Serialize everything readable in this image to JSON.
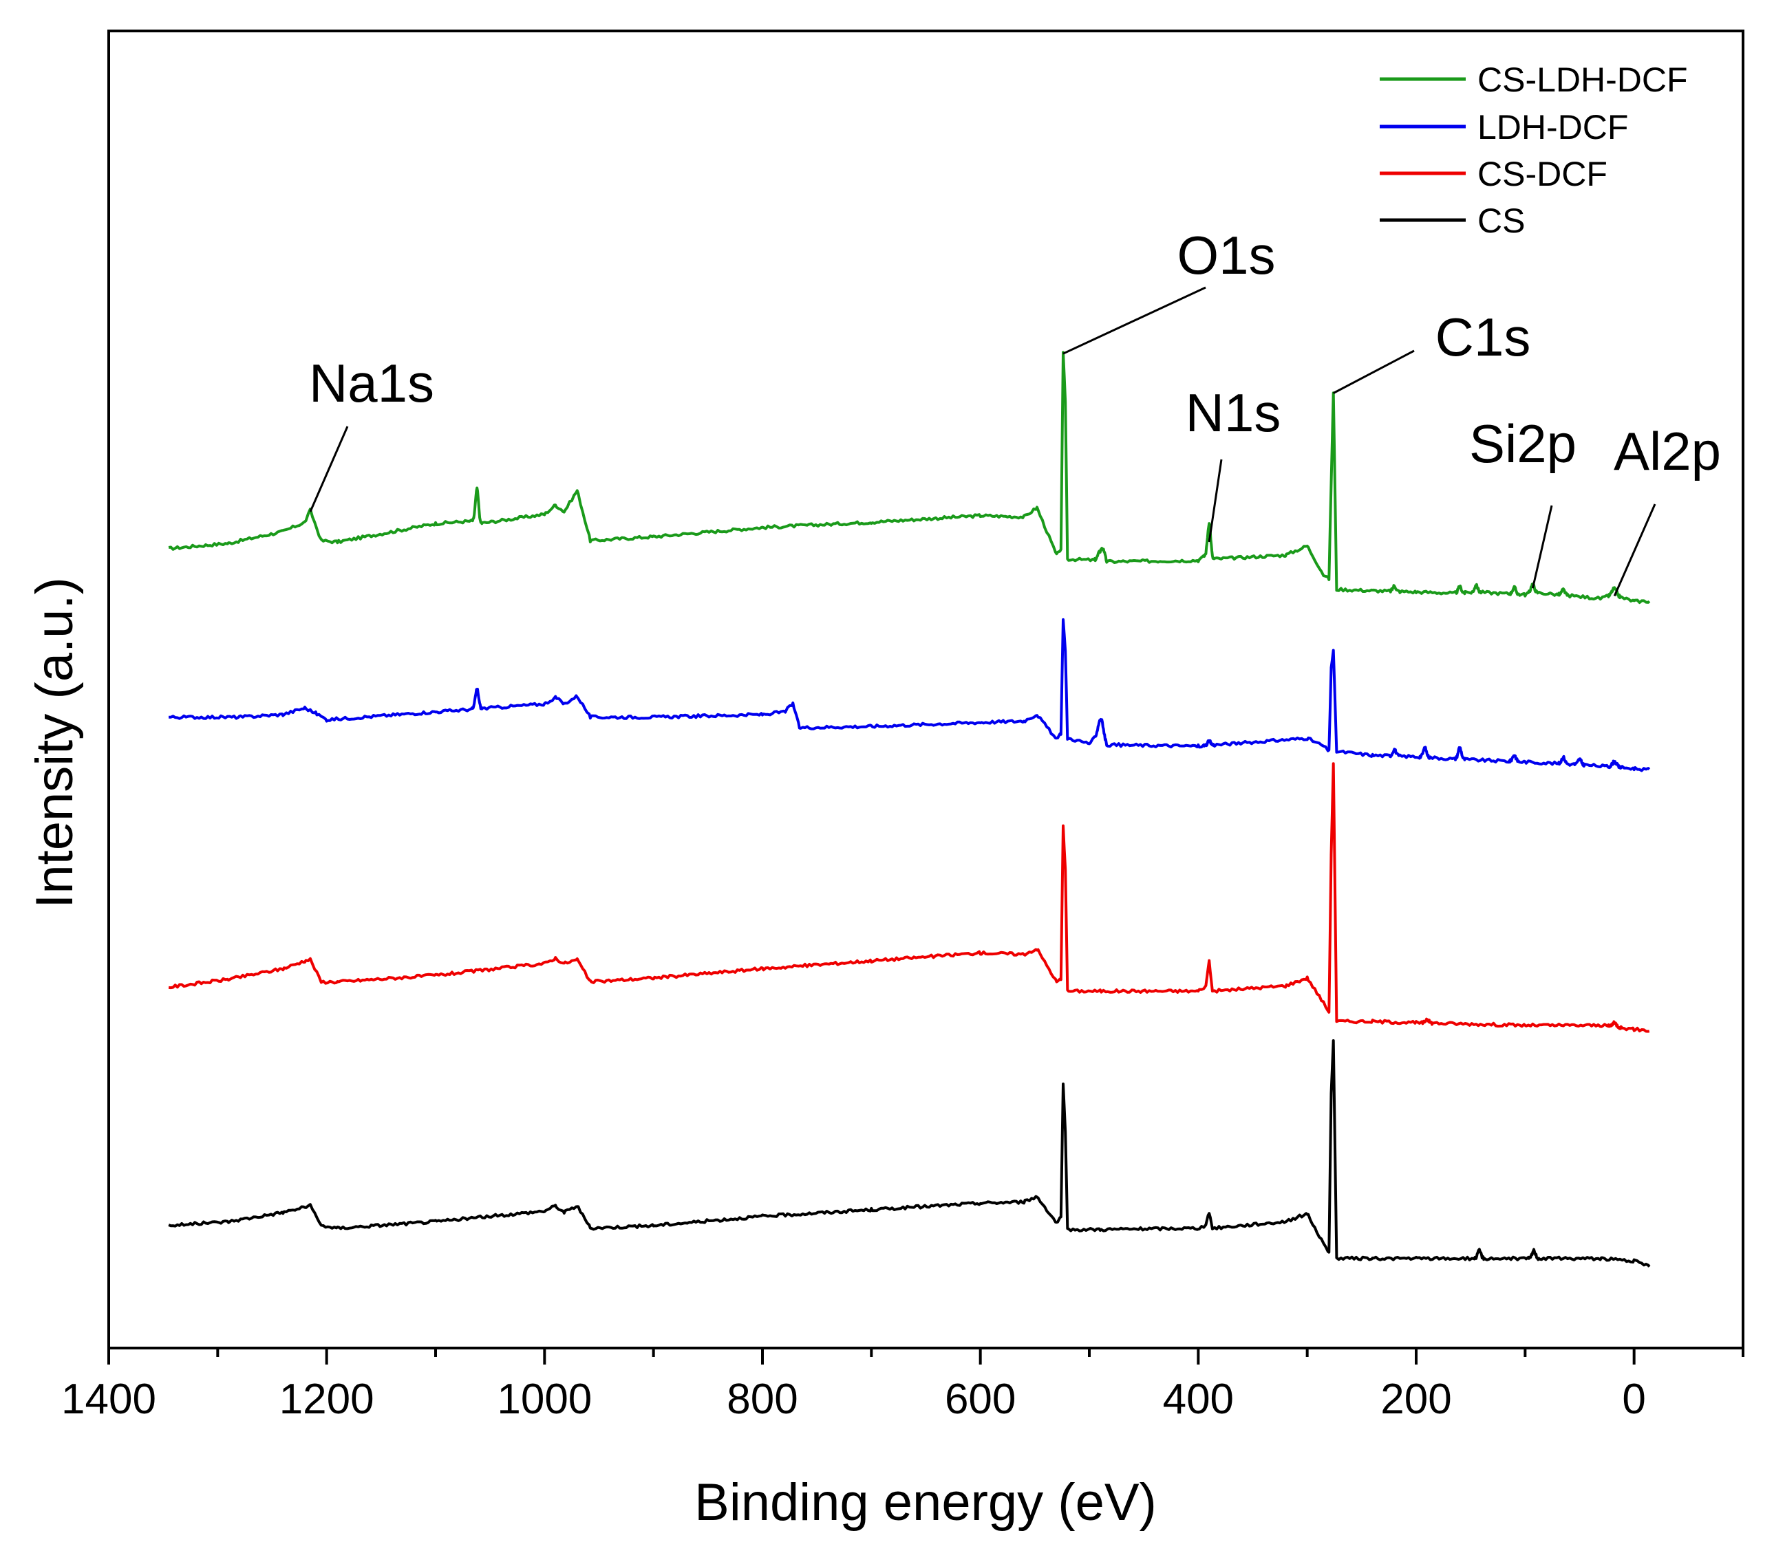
{
  "chart_data": {
    "type": "line",
    "title": "",
    "xlabel": "Binding energy (eV)",
    "ylabel": "Intensity (a.u.)",
    "xlim": [
      1400,
      -100
    ],
    "x_reversed": true,
    "ylim": [
      0,
      100
    ],
    "x_ticks": [
      1400,
      1200,
      1000,
      800,
      600,
      400,
      200,
      0
    ],
    "x_tick_labels": [
      "1400",
      "1200",
      "1000",
      "800",
      "600",
      "400",
      "200",
      "0"
    ],
    "x_minor_ticks": [
      1300,
      1100,
      900,
      700,
      500,
      300,
      100,
      -100
    ],
    "grid": false,
    "legend_position": "top-right",
    "series": [
      {
        "name": "CS-LDH-DCF",
        "color": "#1a9a1a",
        "offset": 60.7,
        "keypoints": [
          [
            1345,
            0
          ],
          [
            1290,
            0.4
          ],
          [
            1240,
            1.3
          ],
          [
            1220,
            2.0
          ],
          [
            1215,
            2.9
          ],
          [
            1205,
            0.6
          ],
          [
            1190,
            0.5
          ],
          [
            1100,
            1.9
          ],
          [
            1065,
            2.1
          ],
          [
            1062,
            3.4
          ],
          [
            1059,
            1.9
          ],
          [
            1000,
            2.6
          ],
          [
            990,
            3.3
          ],
          [
            982,
            2.8
          ],
          [
            970,
            4.4
          ],
          [
            958,
            0.6
          ],
          [
            900,
            0.9
          ],
          [
            800,
            1.6
          ],
          [
            700,
            2.0
          ],
          [
            600,
            2.5
          ],
          [
            560,
            2.4
          ],
          [
            548,
            3.1
          ],
          [
            530,
            -0.5
          ],
          [
            526,
            0
          ],
          [
            524,
            14.8
          ],
          [
            522,
            11.2
          ],
          [
            520,
            -0.8
          ],
          [
            490,
            -0.9
          ],
          [
            487,
            -0.2
          ],
          [
            484,
            -1.0
          ],
          [
            400,
            -0.9
          ],
          [
            393,
            -0.5
          ],
          [
            390,
            0.6
          ],
          [
            387,
            -0.8
          ],
          [
            320,
            -0.5
          ],
          [
            300,
            0.2
          ],
          [
            285,
            -2.0
          ],
          [
            280,
            -2.3
          ],
          [
            278,
            5.0
          ],
          [
            276,
            11.8
          ],
          [
            273,
            -3.1
          ],
          [
            240,
            -3.2
          ],
          [
            200,
            -3.3
          ],
          [
            160,
            -3.4
          ],
          [
            145,
            -3.3
          ],
          [
            100,
            -3.5
          ],
          [
            95,
            -3.3
          ],
          [
            30,
            -3.8
          ],
          [
            20,
            -3.5
          ],
          [
            0,
            -4.0
          ],
          [
            -14,
            -4.0
          ]
        ],
        "peaks": [
          {
            "x": 1062,
            "h": 1.2,
            "w": 1.5
          },
          {
            "x": 490,
            "h": 0.7,
            "w": 2
          },
          {
            "x": 390,
            "h": 1.4,
            "w": 1.5
          },
          {
            "x": 220,
            "h": 0.4,
            "w": 1.5
          },
          {
            "x": 160,
            "h": 0.5,
            "w": 1.5
          },
          {
            "x": 145,
            "h": 0.5,
            "w": 1.5
          },
          {
            "x": 110,
            "h": 0.5,
            "w": 1.5
          },
          {
            "x": 93,
            "h": 0.6,
            "w": 1.5
          },
          {
            "x": 65,
            "h": 0.4,
            "w": 1.5
          },
          {
            "x": 18,
            "h": 0.5,
            "w": 2
          }
        ]
      },
      {
        "name": "LDH-DCF",
        "color": "#0000ee",
        "offset": 47.9,
        "keypoints": [
          [
            1345,
            0
          ],
          [
            1280,
            0
          ],
          [
            1240,
            0.2
          ],
          [
            1220,
            0.7
          ],
          [
            1210,
            0.3
          ],
          [
            1200,
            -0.2
          ],
          [
            1100,
            0.4
          ],
          [
            1000,
            1.0
          ],
          [
            990,
            1.5
          ],
          [
            982,
            1.0
          ],
          [
            970,
            1.6
          ],
          [
            958,
            0
          ],
          [
            900,
            0
          ],
          [
            800,
            0.2
          ],
          [
            780,
            0.4
          ],
          [
            772,
            1.0
          ],
          [
            766,
            -0.8
          ],
          [
            700,
            -0.7
          ],
          [
            600,
            -0.4
          ],
          [
            560,
            -0.3
          ],
          [
            548,
            0.2
          ],
          [
            530,
            -1.7
          ],
          [
            526,
            -1.2
          ],
          [
            524,
            7.5
          ],
          [
            522,
            5.0
          ],
          [
            520,
            -1.6
          ],
          [
            500,
            -2.0
          ],
          [
            488,
            -1.0
          ],
          [
            484,
            -2.1
          ],
          [
            400,
            -2.2
          ],
          [
            300,
            -1.6
          ],
          [
            285,
            -2.2
          ],
          [
            280,
            -2.6
          ],
          [
            278,
            3.8
          ],
          [
            276,
            5.0
          ],
          [
            273,
            -2.6
          ],
          [
            240,
            -2.9
          ],
          [
            200,
            -3.0
          ],
          [
            160,
            -3.2
          ],
          [
            100,
            -3.4
          ],
          [
            50,
            -3.6
          ],
          [
            0,
            -3.9
          ],
          [
            -14,
            -4.0
          ]
        ],
        "peaks": [
          {
            "x": 1062,
            "h": 1.5,
            "w": 1.5
          },
          {
            "x": 490,
            "h": 1.0,
            "w": 2
          },
          {
            "x": 390,
            "h": 0.3,
            "w": 1.5
          },
          {
            "x": 220,
            "h": 0.5,
            "w": 1.5
          },
          {
            "x": 192,
            "h": 0.7,
            "w": 1.5
          },
          {
            "x": 160,
            "h": 0.9,
            "w": 1.5
          },
          {
            "x": 110,
            "h": 0.5,
            "w": 1.5
          },
          {
            "x": 65,
            "h": 0.5,
            "w": 1.5
          },
          {
            "x": 50,
            "h": 0.4,
            "w": 1.5
          },
          {
            "x": 18,
            "h": 0.4,
            "w": 2
          }
        ]
      },
      {
        "name": "CS-DCF",
        "color": "#ee0000",
        "offset": 27.4,
        "keypoints": [
          [
            1345,
            0
          ],
          [
            1290,
            0.6
          ],
          [
            1240,
            1.4
          ],
          [
            1220,
            2.0
          ],
          [
            1215,
            2.1
          ],
          [
            1205,
            0.4
          ],
          [
            1190,
            0.4
          ],
          [
            1100,
            0.9
          ],
          [
            1000,
            1.8
          ],
          [
            990,
            2.2
          ],
          [
            982,
            1.8
          ],
          [
            970,
            2.1
          ],
          [
            958,
            0.4
          ],
          [
            900,
            0.7
          ],
          [
            800,
            1.4
          ],
          [
            700,
            2.0
          ],
          [
            600,
            2.6
          ],
          [
            560,
            2.5
          ],
          [
            548,
            2.9
          ],
          [
            530,
            0.4
          ],
          [
            526,
            0.6
          ],
          [
            524,
            12.2
          ],
          [
            522,
            9.0
          ],
          [
            520,
            -0.3
          ],
          [
            490,
            -0.3
          ],
          [
            400,
            -0.3
          ],
          [
            393,
            0.1
          ],
          [
            390,
            2.0
          ],
          [
            387,
            -0.3
          ],
          [
            320,
            0.1
          ],
          [
            300,
            0.7
          ],
          [
            285,
            -1.2
          ],
          [
            280,
            -1.9
          ],
          [
            278,
            10.0
          ],
          [
            276,
            17.0
          ],
          [
            273,
            -2.6
          ],
          [
            240,
            -2.6
          ],
          [
            200,
            -2.7
          ],
          [
            100,
            -2.9
          ],
          [
            30,
            -2.9
          ],
          [
            0,
            -3.2
          ],
          [
            -14,
            -3.3
          ]
        ],
        "peaks": [
          {
            "x": 190,
            "h": 0.3,
            "w": 1.5
          },
          {
            "x": 18,
            "h": 0.3,
            "w": 2
          }
        ]
      },
      {
        "name": "CS",
        "color": "#000000",
        "offset": 9.3,
        "keypoints": [
          [
            1345,
            0
          ],
          [
            1290,
            0.3
          ],
          [
            1240,
            1.0
          ],
          [
            1220,
            1.4
          ],
          [
            1215,
            1.5
          ],
          [
            1205,
            0
          ],
          [
            1190,
            -0.2
          ],
          [
            1100,
            0.3
          ],
          [
            1000,
            1.1
          ],
          [
            990,
            1.5
          ],
          [
            982,
            1.0
          ],
          [
            970,
            1.5
          ],
          [
            958,
            -0.2
          ],
          [
            900,
            0
          ],
          [
            800,
            0.7
          ],
          [
            700,
            1.2
          ],
          [
            600,
            1.7
          ],
          [
            560,
            1.8
          ],
          [
            548,
            2.2
          ],
          [
            530,
            0.2
          ],
          [
            526,
            0.6
          ],
          [
            524,
            10.7
          ],
          [
            522,
            7.0
          ],
          [
            520,
            -0.3
          ],
          [
            490,
            -0.3
          ],
          [
            400,
            -0.2
          ],
          [
            393,
            0
          ],
          [
            390,
            1.0
          ],
          [
            387,
            -0.2
          ],
          [
            320,
            0.3
          ],
          [
            300,
            0.9
          ],
          [
            285,
            -1.4
          ],
          [
            280,
            -2.0
          ],
          [
            278,
            10.0
          ],
          [
            276,
            14.0
          ],
          [
            273,
            -2.5
          ],
          [
            240,
            -2.5
          ],
          [
            200,
            -2.5
          ],
          [
            100,
            -2.5
          ],
          [
            30,
            -2.5
          ],
          [
            0,
            -2.7
          ],
          [
            -14,
            -3.1
          ]
        ],
        "peaks": [
          {
            "x": 142,
            "h": 0.6,
            "w": 1.5
          },
          {
            "x": 92,
            "h": 0.6,
            "w": 1.5
          }
        ]
      }
    ],
    "annotations": [
      {
        "text": "O1s",
        "target_x": 524,
        "target_y": 75.5
      },
      {
        "text": "C1s",
        "target_x": 276,
        "target_y": 72.5
      },
      {
        "text": "N1s",
        "target_x": 390,
        "target_y": 61.2
      },
      {
        "text": "Na1s",
        "target_x": 1215,
        "target_y": 63.5
      },
      {
        "text": "Si2p",
        "target_x": 93,
        "target_y": 57.7
      },
      {
        "text": "Al2p",
        "target_x": 18,
        "target_y": 57.1
      }
    ]
  }
}
